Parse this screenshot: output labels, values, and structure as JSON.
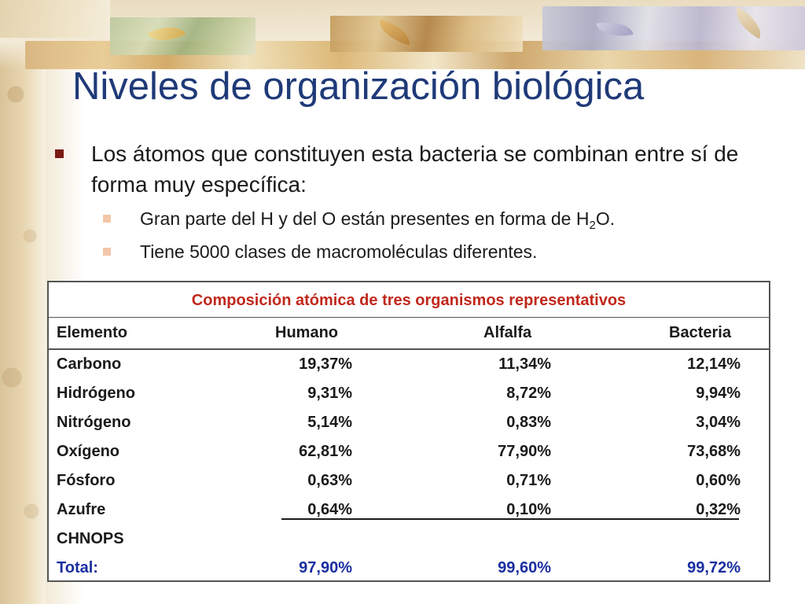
{
  "slide": {
    "title": "Niveles de organización biológica",
    "bullet_main": "Los átomos que constituyen esta bacteria se combinan entre sí de forma muy específica:",
    "sub_1_pre": "Gran parte del H y del O están presentes en forma de H",
    "sub_1_sub": "2",
    "sub_1_post": "O.",
    "sub_2": "Tiene 5000 clases de macromoléculas diferentes."
  },
  "table": {
    "caption": "Composición atómica de tres organismos representativos",
    "headers": [
      "Elemento",
      "Humano",
      "Alfalfa",
      "Bacteria"
    ],
    "rows": [
      {
        "element": "Carbono",
        "humano": "19,37%",
        "alfalfa": "11,34%",
        "bacteria": "12,14%"
      },
      {
        "element": "Hidrógeno",
        "humano": "9,31%",
        "alfalfa": "8,72%",
        "bacteria": "9,94%"
      },
      {
        "element": "Nitrógeno",
        "humano": "5,14%",
        "alfalfa": "0,83%",
        "bacteria": "3,04%"
      },
      {
        "element": "Oxígeno",
        "humano": "62,81%",
        "alfalfa": "77,90%",
        "bacteria": "73,68%"
      },
      {
        "element": "Fósforo",
        "humano": "0,63%",
        "alfalfa": "0,71%",
        "bacteria": "0,60%"
      },
      {
        "element": "Azufre",
        "humano": "0,64%",
        "alfalfa": "0,10%",
        "bacteria": "0,32%"
      },
      {
        "element": "CHNOPS",
        "humano": "",
        "alfalfa": "",
        "bacteria": ""
      }
    ],
    "total": {
      "label": "Total:",
      "humano": "97,90%",
      "alfalfa": "99,60%",
      "bacteria": "99,72%"
    }
  },
  "colors": {
    "title": "#1f3a78",
    "caption": "#c0281c",
    "total": "#1a2ea0",
    "main_bullet": "#7a1a12",
    "sub_bullet": "#f2c6a8"
  }
}
